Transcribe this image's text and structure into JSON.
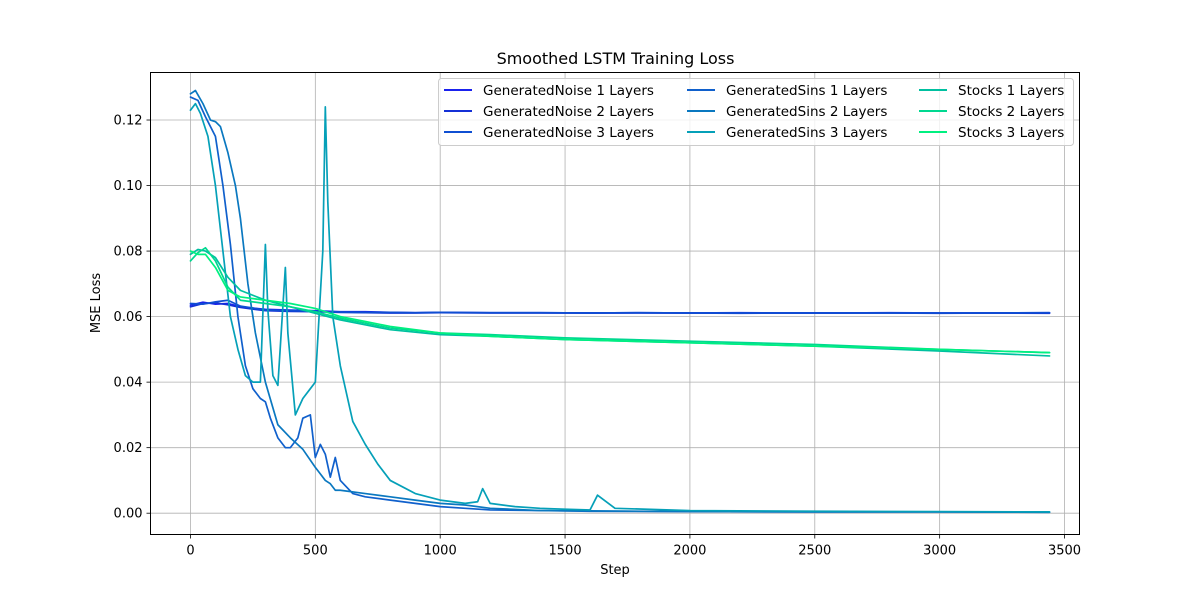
{
  "chart_data": {
    "type": "line",
    "title": "Smoothed LSTM Training Loss",
    "xlabel": "Step",
    "ylabel": "MSE Loss",
    "xlim": [
      -160,
      3560
    ],
    "ylim": [
      -0.0065,
      0.1345
    ],
    "xticks": [
      0,
      500,
      1000,
      1500,
      2000,
      2500,
      3000,
      3500
    ],
    "yticks": [
      0.0,
      0.02,
      0.04,
      0.06,
      0.08,
      0.1,
      0.12
    ],
    "xtick_labels": [
      "0",
      "500",
      "1000",
      "1500",
      "2000",
      "2500",
      "3000",
      "3500"
    ],
    "ytick_labels": [
      "0.00",
      "0.02",
      "0.04",
      "0.06",
      "0.08",
      "0.10",
      "0.12"
    ],
    "grid": true,
    "legend_position": "top-right",
    "legend_columns": 3,
    "series": [
      {
        "name": "GeneratedNoise 1 Layers",
        "color": "#1a22ee",
        "x": [
          0,
          50,
          100,
          150,
          200,
          300,
          400,
          500,
          600,
          700,
          800,
          900,
          1000,
          1200,
          1400,
          1600,
          1800,
          2000,
          2200,
          2400,
          2600,
          2800,
          3000,
          3200,
          3440
        ],
        "y": [
          0.0635,
          0.0644,
          0.0638,
          0.064,
          0.063,
          0.0622,
          0.062,
          0.0618,
          0.0615,
          0.0615,
          0.0613,
          0.0612,
          0.0613,
          0.0612,
          0.0612,
          0.0611,
          0.0612,
          0.0611,
          0.0612,
          0.0611,
          0.0611,
          0.0612,
          0.0611,
          0.0611,
          0.0612
        ]
      },
      {
        "name": "GeneratedNoise 2 Layers",
        "color": "#1430d6",
        "x": [
          0,
          50,
          100,
          150,
          200,
          300,
          400,
          500,
          600,
          700,
          800,
          900,
          1000,
          1200,
          1400,
          1600,
          1800,
          2000,
          2200,
          2400,
          2600,
          2800,
          3000,
          3200,
          3440
        ],
        "y": [
          0.063,
          0.064,
          0.0642,
          0.0636,
          0.0628,
          0.0618,
          0.0616,
          0.0615,
          0.0613,
          0.0612,
          0.0611,
          0.0611,
          0.0612,
          0.0611,
          0.0611,
          0.0611,
          0.0611,
          0.0611,
          0.061,
          0.0611,
          0.0611,
          0.0611,
          0.061,
          0.0611,
          0.061
        ]
      },
      {
        "name": "GeneratedNoise 3 Layers",
        "color": "#0f4fd2",
        "x": [
          0,
          50,
          100,
          150,
          200,
          300,
          400,
          500,
          600,
          700,
          800,
          900,
          1000,
          1200,
          1400,
          1600,
          1800,
          2000,
          2200,
          2400,
          2600,
          2800,
          3000,
          3200,
          3440
        ],
        "y": [
          0.064,
          0.0638,
          0.0645,
          0.065,
          0.0632,
          0.062,
          0.0618,
          0.0616,
          0.0614,
          0.0613,
          0.0613,
          0.0612,
          0.0613,
          0.0612,
          0.0612,
          0.0611,
          0.0612,
          0.0611,
          0.0611,
          0.0611,
          0.0611,
          0.0611,
          0.0611,
          0.0611,
          0.0612
        ]
      },
      {
        "name": "GeneratedSins 1 Layers",
        "color": "#1060cc",
        "x": [
          0,
          30,
          60,
          100,
          130,
          160,
          190,
          220,
          250,
          280,
          300,
          320,
          350,
          380,
          400,
          430,
          450,
          480,
          500,
          520,
          540,
          560,
          580,
          600,
          650,
          700,
          800,
          900,
          1000,
          1100,
          1200,
          1400,
          1600,
          2000,
          2500,
          3000,
          3440
        ],
        "y": [
          0.127,
          0.126,
          0.121,
          0.115,
          0.1,
          0.082,
          0.06,
          0.045,
          0.038,
          0.035,
          0.034,
          0.029,
          0.023,
          0.02,
          0.02,
          0.023,
          0.029,
          0.03,
          0.017,
          0.021,
          0.018,
          0.011,
          0.017,
          0.01,
          0.006,
          0.005,
          0.004,
          0.003,
          0.002,
          0.0015,
          0.001,
          0.0008,
          0.0006,
          0.0005,
          0.0004,
          0.0004,
          0.0003
        ]
      },
      {
        "name": "GeneratedSins 2 Layers",
        "color": "#0a78c0",
        "x": [
          0,
          20,
          50,
          80,
          100,
          120,
          150,
          180,
          200,
          230,
          260,
          300,
          350,
          400,
          450,
          500,
          520,
          540,
          560,
          580,
          600,
          700,
          800,
          900,
          1000,
          1100,
          1200,
          1400,
          1600,
          2000,
          2500,
          3000,
          3440
        ],
        "y": [
          0.128,
          0.129,
          0.125,
          0.12,
          0.1195,
          0.118,
          0.11,
          0.1,
          0.09,
          0.07,
          0.055,
          0.04,
          0.027,
          0.023,
          0.0195,
          0.014,
          0.012,
          0.01,
          0.009,
          0.007,
          0.007,
          0.006,
          0.005,
          0.004,
          0.003,
          0.0025,
          0.0015,
          0.0008,
          0.0007,
          0.0005,
          0.0004,
          0.0004,
          0.0003
        ]
      },
      {
        "name": "GeneratedSins 3 Layers",
        "color": "#05a0b8",
        "x": [
          0,
          20,
          40,
          70,
          100,
          130,
          160,
          190,
          220,
          250,
          280,
          300,
          310,
          330,
          350,
          380,
          390,
          420,
          450,
          480,
          500,
          530,
          540,
          550,
          570,
          600,
          650,
          700,
          750,
          800,
          900,
          1000,
          1100,
          1150,
          1170,
          1200,
          1300,
          1400,
          1500,
          1600,
          1630,
          1700,
          2000,
          2500,
          3000,
          3440
        ],
        "y": [
          0.123,
          0.125,
          0.122,
          0.115,
          0.1,
          0.08,
          0.06,
          0.05,
          0.042,
          0.04,
          0.04,
          0.082,
          0.062,
          0.042,
          0.039,
          0.075,
          0.055,
          0.03,
          0.035,
          0.038,
          0.04,
          0.08,
          0.124,
          0.095,
          0.06,
          0.045,
          0.028,
          0.021,
          0.015,
          0.01,
          0.006,
          0.004,
          0.003,
          0.0035,
          0.0075,
          0.003,
          0.002,
          0.0015,
          0.0012,
          0.001,
          0.0055,
          0.0015,
          0.0008,
          0.0006,
          0.0005,
          0.0004
        ]
      },
      {
        "name": "Stocks 1 Layers",
        "color": "#00c0a0",
        "x": [
          0,
          30,
          60,
          100,
          150,
          200,
          300,
          400,
          500,
          600,
          700,
          800,
          1000,
          1200,
          1500,
          2000,
          2500,
          3000,
          3440
        ],
        "y": [
          0.079,
          0.0805,
          0.08,
          0.078,
          0.072,
          0.068,
          0.065,
          0.063,
          0.061,
          0.059,
          0.0575,
          0.056,
          0.0545,
          0.054,
          0.053,
          0.052,
          0.051,
          0.0495,
          0.048
        ]
      },
      {
        "name": "Stocks 2 Layers",
        "color": "#00d890",
        "x": [
          0,
          30,
          60,
          100,
          150,
          200,
          300,
          400,
          500,
          600,
          700,
          800,
          1000,
          1200,
          1500,
          2000,
          2500,
          3000,
          3440
        ],
        "y": [
          0.077,
          0.0795,
          0.081,
          0.077,
          0.069,
          0.065,
          0.064,
          0.063,
          0.0615,
          0.0595,
          0.058,
          0.0565,
          0.055,
          0.0545,
          0.0535,
          0.0525,
          0.0515,
          0.05,
          0.049
        ]
      },
      {
        "name": "Stocks 3 Layers",
        "color": "#00f080",
        "x": [
          0,
          30,
          60,
          100,
          150,
          200,
          300,
          400,
          500,
          600,
          700,
          800,
          1000,
          1200,
          1500,
          2000,
          2500,
          3000,
          3440
        ],
        "y": [
          0.08,
          0.079,
          0.079,
          0.075,
          0.068,
          0.066,
          0.065,
          0.064,
          0.0625,
          0.06,
          0.0585,
          0.057,
          0.055,
          0.054,
          0.053,
          0.052,
          0.051,
          0.05,
          0.049
        ]
      }
    ]
  }
}
